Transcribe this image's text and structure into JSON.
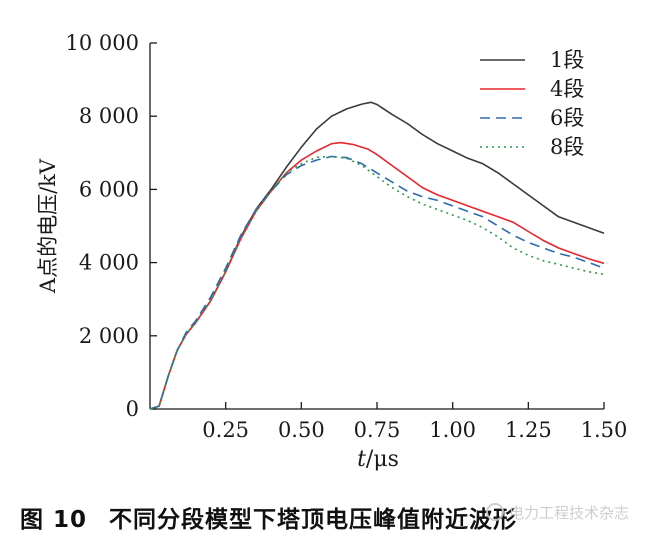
{
  "chart_data": {
    "type": "line",
    "ylabel": "A点的电压/kV",
    "xlabel_italic": "t",
    "xlabel_unit": "/μs",
    "xlim": [
      0,
      1.5
    ],
    "ylim": [
      0,
      10000
    ],
    "x_ticks": [
      0.25,
      0.5,
      0.75,
      1.0,
      1.25,
      1.5
    ],
    "x_tick_labels": [
      "0.25",
      "0.50",
      "0.75",
      "1.00",
      "1.25",
      "1.50"
    ],
    "y_ticks": [
      0,
      2000,
      4000,
      6000,
      8000,
      10000
    ],
    "y_tick_labels": [
      "0",
      "2 000",
      "4 000",
      "6 000",
      "8 000",
      "10 000"
    ],
    "grid": false,
    "legend_position": "top-right",
    "series": [
      {
        "name": "1段",
        "color": "#3a3a3a",
        "dash": "solid",
        "points": [
          [
            0,
            0
          ],
          [
            0.03,
            80
          ],
          [
            0.06,
            900
          ],
          [
            0.09,
            1600
          ],
          [
            0.12,
            2050
          ],
          [
            0.15,
            2350
          ],
          [
            0.2,
            2950
          ],
          [
            0.25,
            3750
          ],
          [
            0.3,
            4700
          ],
          [
            0.35,
            5450
          ],
          [
            0.4,
            6000
          ],
          [
            0.45,
            6600
          ],
          [
            0.5,
            7150
          ],
          [
            0.55,
            7650
          ],
          [
            0.6,
            8000
          ],
          [
            0.65,
            8200
          ],
          [
            0.7,
            8330
          ],
          [
            0.73,
            8380
          ],
          [
            0.75,
            8320
          ],
          [
            0.8,
            8050
          ],
          [
            0.85,
            7800
          ],
          [
            0.9,
            7500
          ],
          [
            0.95,
            7250
          ],
          [
            1.0,
            7050
          ],
          [
            1.05,
            6850
          ],
          [
            1.1,
            6700
          ],
          [
            1.15,
            6450
          ],
          [
            1.2,
            6150
          ],
          [
            1.25,
            5850
          ],
          [
            1.3,
            5550
          ],
          [
            1.35,
            5250
          ],
          [
            1.4,
            5100
          ],
          [
            1.45,
            4950
          ],
          [
            1.5,
            4800
          ]
        ]
      },
      {
        "name": "4段",
        "color": "#e8262d",
        "dash": "solid",
        "points": [
          [
            0,
            0
          ],
          [
            0.03,
            80
          ],
          [
            0.06,
            900
          ],
          [
            0.09,
            1600
          ],
          [
            0.12,
            2050
          ],
          [
            0.15,
            2350
          ],
          [
            0.2,
            2950
          ],
          [
            0.25,
            3750
          ],
          [
            0.3,
            4650
          ],
          [
            0.35,
            5400
          ],
          [
            0.4,
            5950
          ],
          [
            0.45,
            6450
          ],
          [
            0.5,
            6800
          ],
          [
            0.55,
            7050
          ],
          [
            0.6,
            7250
          ],
          [
            0.63,
            7280
          ],
          [
            0.67,
            7230
          ],
          [
            0.72,
            7100
          ],
          [
            0.75,
            6950
          ],
          [
            0.8,
            6650
          ],
          [
            0.85,
            6350
          ],
          [
            0.9,
            6050
          ],
          [
            0.95,
            5850
          ],
          [
            1.0,
            5700
          ],
          [
            1.05,
            5550
          ],
          [
            1.1,
            5400
          ],
          [
            1.15,
            5250
          ],
          [
            1.2,
            5100
          ],
          [
            1.25,
            4850
          ],
          [
            1.3,
            4600
          ],
          [
            1.35,
            4400
          ],
          [
            1.4,
            4250
          ],
          [
            1.45,
            4100
          ],
          [
            1.5,
            3980
          ]
        ]
      },
      {
        "name": "6段",
        "color": "#2b6cb0",
        "dash": "10,6",
        "points": [
          [
            0,
            0
          ],
          [
            0.03,
            80
          ],
          [
            0.06,
            900
          ],
          [
            0.09,
            1600
          ],
          [
            0.12,
            2100
          ],
          [
            0.15,
            2400
          ],
          [
            0.2,
            3050
          ],
          [
            0.25,
            3850
          ],
          [
            0.3,
            4750
          ],
          [
            0.35,
            5450
          ],
          [
            0.4,
            5950
          ],
          [
            0.45,
            6400
          ],
          [
            0.5,
            6650
          ],
          [
            0.55,
            6800
          ],
          [
            0.6,
            6900
          ],
          [
            0.65,
            6870
          ],
          [
            0.7,
            6700
          ],
          [
            0.75,
            6450
          ],
          [
            0.8,
            6200
          ],
          [
            0.85,
            5950
          ],
          [
            0.9,
            5800
          ],
          [
            0.95,
            5700
          ],
          [
            1.0,
            5550
          ],
          [
            1.05,
            5400
          ],
          [
            1.1,
            5250
          ],
          [
            1.15,
            5000
          ],
          [
            1.2,
            4750
          ],
          [
            1.25,
            4550
          ],
          [
            1.3,
            4400
          ],
          [
            1.35,
            4250
          ],
          [
            1.4,
            4150
          ],
          [
            1.45,
            4000
          ],
          [
            1.5,
            3850
          ]
        ]
      },
      {
        "name": "8段",
        "color": "#2e9a4a",
        "dash": "2,4",
        "points": [
          [
            0,
            0
          ],
          [
            0.03,
            80
          ],
          [
            0.06,
            900
          ],
          [
            0.09,
            1600
          ],
          [
            0.12,
            2050
          ],
          [
            0.15,
            2350
          ],
          [
            0.2,
            2950
          ],
          [
            0.25,
            3750
          ],
          [
            0.3,
            4650
          ],
          [
            0.35,
            5400
          ],
          [
            0.4,
            5950
          ],
          [
            0.45,
            6450
          ],
          [
            0.5,
            6700
          ],
          [
            0.55,
            6880
          ],
          [
            0.6,
            6900
          ],
          [
            0.65,
            6850
          ],
          [
            0.7,
            6650
          ],
          [
            0.75,
            6350
          ],
          [
            0.8,
            6050
          ],
          [
            0.85,
            5800
          ],
          [
            0.9,
            5600
          ],
          [
            0.95,
            5450
          ],
          [
            1.0,
            5300
          ],
          [
            1.05,
            5150
          ],
          [
            1.1,
            4950
          ],
          [
            1.15,
            4700
          ],
          [
            1.2,
            4400
          ],
          [
            1.25,
            4200
          ],
          [
            1.3,
            4050
          ],
          [
            1.35,
            3950
          ],
          [
            1.4,
            3850
          ],
          [
            1.45,
            3750
          ],
          [
            1.5,
            3680
          ]
        ]
      }
    ]
  },
  "caption": {
    "number": "图 10",
    "text": "不同分段模型下塔顶电压峰值附近波形"
  },
  "watermark": {
    "text": "电力工程技术杂志"
  }
}
